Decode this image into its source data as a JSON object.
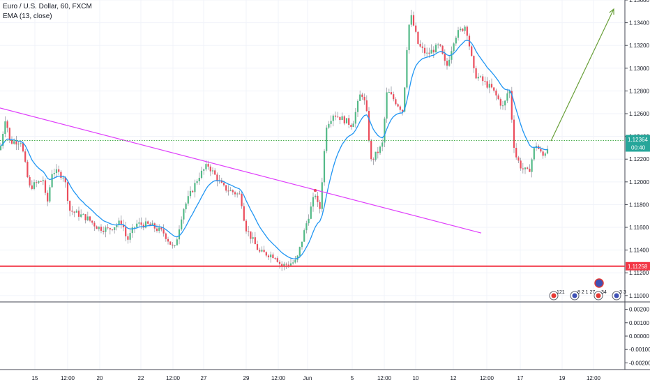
{
  "legend": {
    "title": "Euro / U.S. Dollar, 60, FXCM",
    "indicator": "EMA (13, close)"
  },
  "colors": {
    "up": "#53b987",
    "down": "#eb4d5c",
    "wick": "#9598a1",
    "ema": "#2196f3",
    "trendline": "#e040fb",
    "support": "#f23645",
    "arrow": "#689f38",
    "price_line": "#4caf50",
    "grid": "#f0f3fa",
    "axis_text": "#131722",
    "divider": "#434651"
  },
  "chart_data": [
    {
      "type": "line",
      "title": "Euro / U.S. Dollar, 60, FXCM",
      "series": [
        {
          "name": "EMA (13, close)"
        }
      ],
      "y_ticks": [
        "1.13600",
        "1.13400",
        "1.13200",
        "1.13000",
        "1.12800",
        "1.12600",
        "1.12400",
        "1.12200",
        "1.12000",
        "1.11800",
        "1.11600",
        "1.11400",
        "1.11200",
        "1.11000"
      ],
      "ylim": [
        1.1095,
        1.136
      ],
      "x_ticks": [
        "15",
        "12:00",
        "20",
        "22",
        "12:00",
        "27",
        "29",
        "12:00",
        "Jun",
        "5",
        "12:00",
        "10",
        "12",
        "12:00",
        "17",
        "19",
        "12:00"
      ],
      "price_labels": [
        {
          "value": "1.12364",
          "sub": "00:40",
          "price": 1.12364
        },
        {
          "value": "1.11258",
          "price": 1.11258
        }
      ],
      "approx_path": [
        [
          0,
          1.1228
        ],
        [
          8,
          1.1258
        ],
        [
          14,
          1.1235
        ],
        [
          30,
          1.1236
        ],
        [
          42,
          1.1195
        ],
        [
          62,
          1.1202
        ],
        [
          67,
          1.1178
        ],
        [
          75,
          1.121
        ],
        [
          92,
          1.1205
        ],
        [
          100,
          1.1175
        ],
        [
          125,
          1.1168
        ],
        [
          140,
          1.116
        ],
        [
          155,
          1.1158
        ],
        [
          175,
          1.1165
        ],
        [
          182,
          1.1148
        ],
        [
          195,
          1.1163
        ],
        [
          215,
          1.1162
        ],
        [
          235,
          1.1155
        ],
        [
          250,
          1.114
        ],
        [
          262,
          1.1175
        ],
        [
          285,
          1.1205
        ],
        [
          298,
          1.1215
        ],
        [
          320,
          1.1195
        ],
        [
          345,
          1.1188
        ],
        [
          352,
          1.116
        ],
        [
          372,
          1.1138
        ],
        [
          395,
          1.1135
        ],
        [
          403,
          1.1126
        ],
        [
          425,
          1.113
        ],
        [
          440,
          1.1165
        ],
        [
          452,
          1.119
        ],
        [
          458,
          1.1172
        ],
        [
          468,
          1.125
        ],
        [
          478,
          1.126
        ],
        [
          492,
          1.1255
        ],
        [
          505,
          1.125
        ],
        [
          518,
          1.128
        ],
        [
          525,
          1.1265
        ],
        [
          532,
          1.1218
        ],
        [
          548,
          1.1232
        ],
        [
          555,
          1.128
        ],
        [
          568,
          1.127
        ],
        [
          578,
          1.1262
        ],
        [
          585,
          1.1335
        ],
        [
          590,
          1.1345
        ],
        [
          600,
          1.132
        ],
        [
          612,
          1.1312
        ],
        [
          630,
          1.132
        ],
        [
          640,
          1.13
        ],
        [
          652,
          1.1328
        ],
        [
          668,
          1.1338
        ],
        [
          680,
          1.1295
        ],
        [
          705,
          1.1282
        ],
        [
          722,
          1.1265
        ],
        [
          730,
          1.1284
        ],
        [
          738,
          1.1225
        ],
        [
          748,
          1.1212
        ],
        [
          758,
          1.1208
        ],
        [
          768,
          1.1234
        ],
        [
          778,
          1.1222
        ],
        [
          788,
          1.1234
        ]
      ],
      "trendline": [
        [
          0,
          1.1265
        ],
        [
          690,
          1.1155
        ]
      ],
      "support_level": 1.11258,
      "forecast_arrow": [
        [
          790,
          1.1236
        ],
        [
          880,
          1.1352
        ]
      ],
      "marker": [
        452,
        1.11925
      ]
    },
    {
      "type": "line",
      "y_ticks": [
        "0.00200",
        "0.00100",
        "0.00000",
        "-0.00100",
        "-0.00200"
      ],
      "ylim": [
        -0.0025,
        0.0025
      ]
    }
  ],
  "events": [
    {
      "label": "121"
    },
    {
      "label": "8"
    },
    {
      "label": "2 1 27"
    },
    {
      "label": "34"
    },
    {
      "label": "3 3"
    }
  ]
}
